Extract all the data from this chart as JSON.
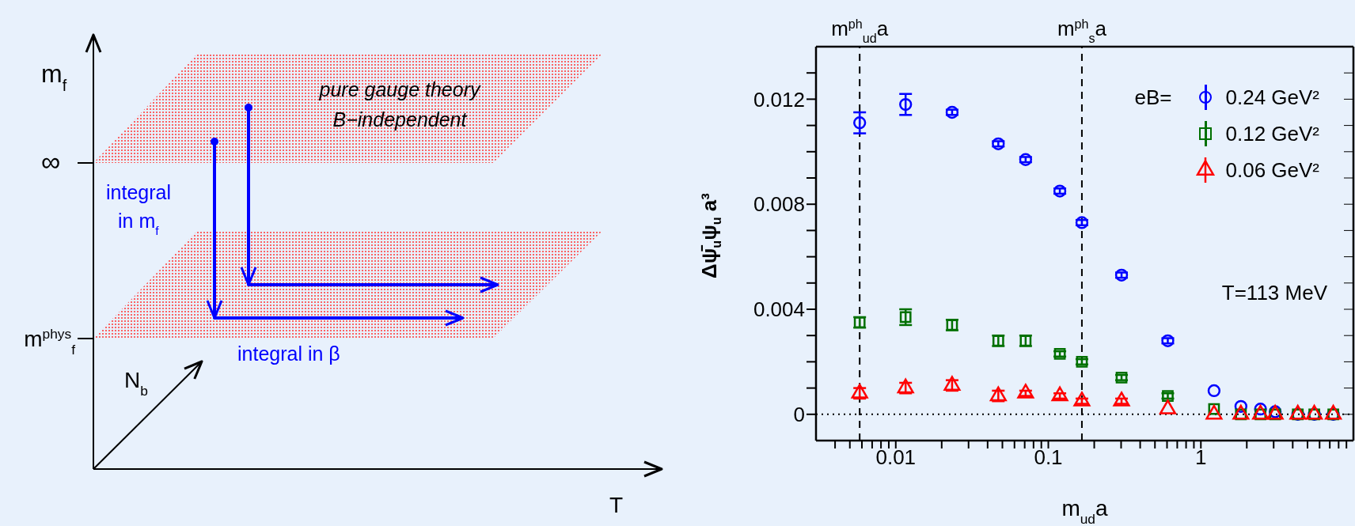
{
  "chart_data": [
    {
      "type": "other",
      "annotations": [
        "m$_{f}$",
        "∞",
        "m$^{phys}$$_{f}$",
        "pure gauge theory",
        "B−independent",
        "integral",
        "in m$_{f}$",
        "integral in β",
        "N$_{b}$",
        "T"
      ]
    },
    {
      "type": "scatter",
      "xlabel": "m$_{ud}$a",
      "ylabel": "Δψ̄$_{u}$ψ$_{u}$ a³",
      "legend_title": "eB=",
      "legend": "top right",
      "log": "x",
      "annotations": [
        "T=113 MeV"
      ],
      "x": [
        0.0058,
        0.0116,
        0.0234,
        0.047,
        0.071,
        0.119,
        0.166,
        0.302,
        0.607,
        1.22,
        1.83,
        2.46,
        3.07,
        4.32,
        5.54,
        7.38
      ],
      "xlim": [
        0.003,
        10
      ],
      "xticks": [
        {
          "value": 0.004,
          "label": null
        },
        {
          "value": 0.005,
          "label": null
        },
        {
          "value": 0.006,
          "label": null
        },
        {
          "value": 0.007,
          "label": null
        },
        {
          "value": 0.008,
          "label": null
        },
        {
          "value": 0.009,
          "label": null
        },
        0.01,
        {
          "value": 0.02,
          "label": null
        },
        {
          "value": 0.03,
          "label": null
        },
        {
          "value": 0.04,
          "label": null
        },
        {
          "value": 0.05,
          "label": null
        },
        {
          "value": 0.06,
          "label": null
        },
        {
          "value": 0.07,
          "label": null
        },
        {
          "value": 0.08,
          "label": null
        },
        {
          "value": 0.09,
          "label": null
        },
        0.1,
        {
          "value": 0.2,
          "label": null
        },
        {
          "value": 0.3,
          "label": null
        },
        {
          "value": 0.4,
          "label": null
        },
        {
          "value": 0.5,
          "label": null
        },
        {
          "value": 0.6,
          "label": null
        },
        {
          "value": 0.7,
          "label": null
        },
        {
          "value": 0.8,
          "label": null
        },
        {
          "value": 0.9,
          "label": null
        },
        1,
        {
          "value": 2,
          "label": null
        },
        {
          "value": 3,
          "label": null
        },
        {
          "value": 4,
          "label": null
        },
        {
          "value": 5,
          "label": null
        },
        {
          "value": 6,
          "label": null
        },
        {
          "value": 7,
          "label": null
        },
        {
          "value": 8,
          "label": null
        },
        {
          "value": 9,
          "label": null
        }
      ],
      "ylim": [
        -0.001,
        0.014
      ],
      "yticks": [
        0,
        {
          "value": 0.001,
          "label": null
        },
        {
          "value": 0.002,
          "label": null
        },
        {
          "value": 0.003,
          "label": null
        },
        0.004,
        {
          "value": 0.005,
          "label": null
        },
        {
          "value": 0.006,
          "label": null
        },
        {
          "value": 0.007,
          "label": null
        },
        0.008,
        {
          "value": 0.009,
          "label": null
        },
        {
          "value": 0.01,
          "label": null
        },
        {
          "value": 0.011,
          "label": null
        },
        0.012,
        {
          "value": 0.013,
          "label": null
        }
      ],
      "series": [
        {
          "name": "0.24 GeV²",
          "color": "#0000ff",
          "marker": "circle",
          "values": [
            0.0111,
            0.0118,
            0.0115,
            0.0103,
            0.0097,
            0.0085,
            0.0073,
            0.0053,
            0.0028,
            0.0009,
            0.0003,
            0.0002,
            0.0001,
            0,
            0,
            0
          ],
          "errors": [
            0.0004,
            0.0004,
            0.0001,
            0.0001,
            0.0001,
            0.0001,
            0.0001,
            0.0001,
            0.0001,
            null,
            null,
            null,
            null,
            null,
            null,
            null
          ]
        },
        {
          "name": "0.12 GeV²",
          "color": "#007000",
          "marker": "square",
          "values": [
            0.0035,
            0.0037,
            0.0034,
            0.0028,
            0.0028,
            0.0023,
            0.002,
            0.0014,
            0.0007,
            0.0002,
            0,
            0,
            0,
            0,
            0,
            0
          ],
          "errors": [
            0.0002,
            0.0003,
            0.0002,
            0.0002,
            0.0002,
            0.0001,
            0.0001,
            0.0001,
            0.0001,
            null,
            null,
            null,
            null,
            null,
            null,
            null
          ]
        },
        {
          "name": "0.06 GeV²",
          "color": "#ff0000",
          "marker": "triangle",
          "values": [
            0.0008,
            0.001,
            0.0011,
            0.0007,
            0.0008,
            0.0007,
            0.0005,
            0.0005,
            0.0002,
            0,
            0,
            0,
            0,
            0,
            0,
            0
          ],
          "errors": [
            0.0002,
            0.0002,
            0.0002,
            0.0002,
            0.0001,
            0.0001,
            0.0001,
            0.0001,
            null,
            null,
            null,
            null,
            null,
            null,
            null,
            null
          ]
        }
      ],
      "ref_lines": [
        {
          "axis": "x",
          "value": 0.0058,
          "label": "m$^{ph}$$_{ud}$a",
          "line_style": "dashed",
          "color": "#000000"
        },
        {
          "axis": "x",
          "value": 0.166,
          "label": "m$^{ph}$$_{s}$a",
          "line_style": "dashed",
          "color": "#000000"
        },
        {
          "axis": "y",
          "value": 0,
          "line_style": "dotted",
          "color": "#000000"
        }
      ]
    }
  ]
}
